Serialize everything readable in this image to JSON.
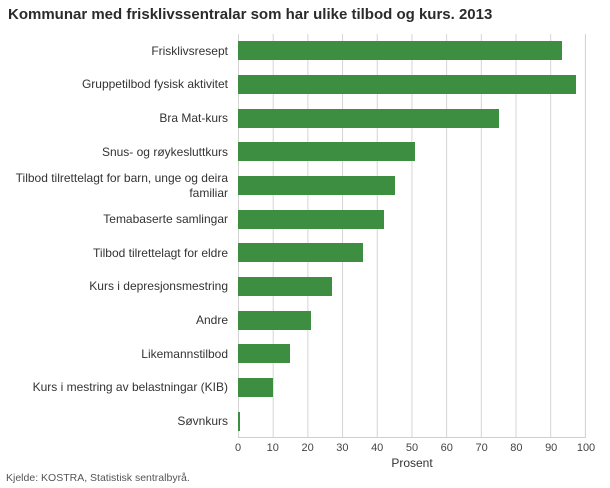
{
  "chart_data": {
    "type": "bar",
    "orientation": "horizontal",
    "title": "Kommunar med frisklivssentralar som har ulike tilbod og kurs. 2013",
    "categories": [
      "Frisklivsresept",
      "Gruppetilbod fysisk aktivitet",
      "Bra Mat-kurs",
      "Snus- og røykesluttkurs",
      "Tilbod tilrettelagt for barn, unge og deira familiar",
      "Temabaserte samlingar",
      "Tilbod tilrettelagt for eldre",
      "Kurs i depresjonsmestring",
      "Andre",
      "Likemannstilbod",
      "Kurs i mestring av belastningar (KIB)",
      "Søvnkurs"
    ],
    "values": [
      93,
      97,
      75,
      51,
      45,
      42,
      36,
      27,
      21,
      15,
      10,
      0.5
    ],
    "xlabel": "Prosent",
    "xlim": [
      0,
      100
    ],
    "xticks": [
      0,
      10,
      20,
      30,
      40,
      50,
      60,
      70,
      80,
      90,
      100
    ],
    "bar_color": "#3e8e41",
    "grid": true,
    "legend": false
  },
  "source": "Kjelde: KOSTRA, Statistisk sentralbyrå."
}
